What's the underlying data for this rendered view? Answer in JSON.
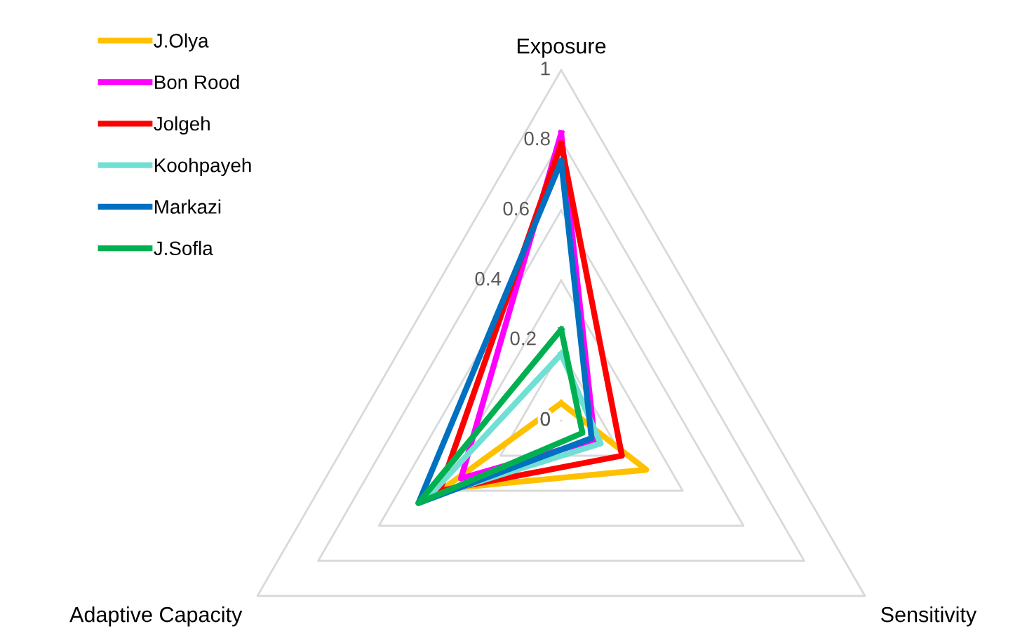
{
  "chart_data": {
    "type": "radar",
    "categories": [
      "Exposure",
      "Sensitivity",
      "Adaptive Capacity"
    ],
    "ylim": [
      0,
      1
    ],
    "yticks": [
      0,
      0.2,
      0.4,
      0.6,
      0.8,
      1
    ],
    "grid": true,
    "legend": "top left",
    "series": [
      {
        "name": "J.Olya",
        "color": "#ffc000",
        "values": [
          0.05,
          0.28,
          0.39
        ]
      },
      {
        "name": "Bon Rood",
        "color": "#ff00ff",
        "values": [
          0.82,
          0.11,
          0.33
        ]
      },
      {
        "name": "Jolgeh",
        "color": "#ff0000",
        "values": [
          0.79,
          0.2,
          0.4
        ]
      },
      {
        "name": "Koohpayeh",
        "color": "#70e0d4",
        "values": [
          0.19,
          0.13,
          0.44
        ]
      },
      {
        "name": "Markazi",
        "color": "#0070c0",
        "values": [
          0.74,
          0.1,
          0.47
        ]
      },
      {
        "name": "J.Sofla",
        "color": "#00b050",
        "values": [
          0.26,
          0.07,
          0.47
        ]
      }
    ]
  }
}
